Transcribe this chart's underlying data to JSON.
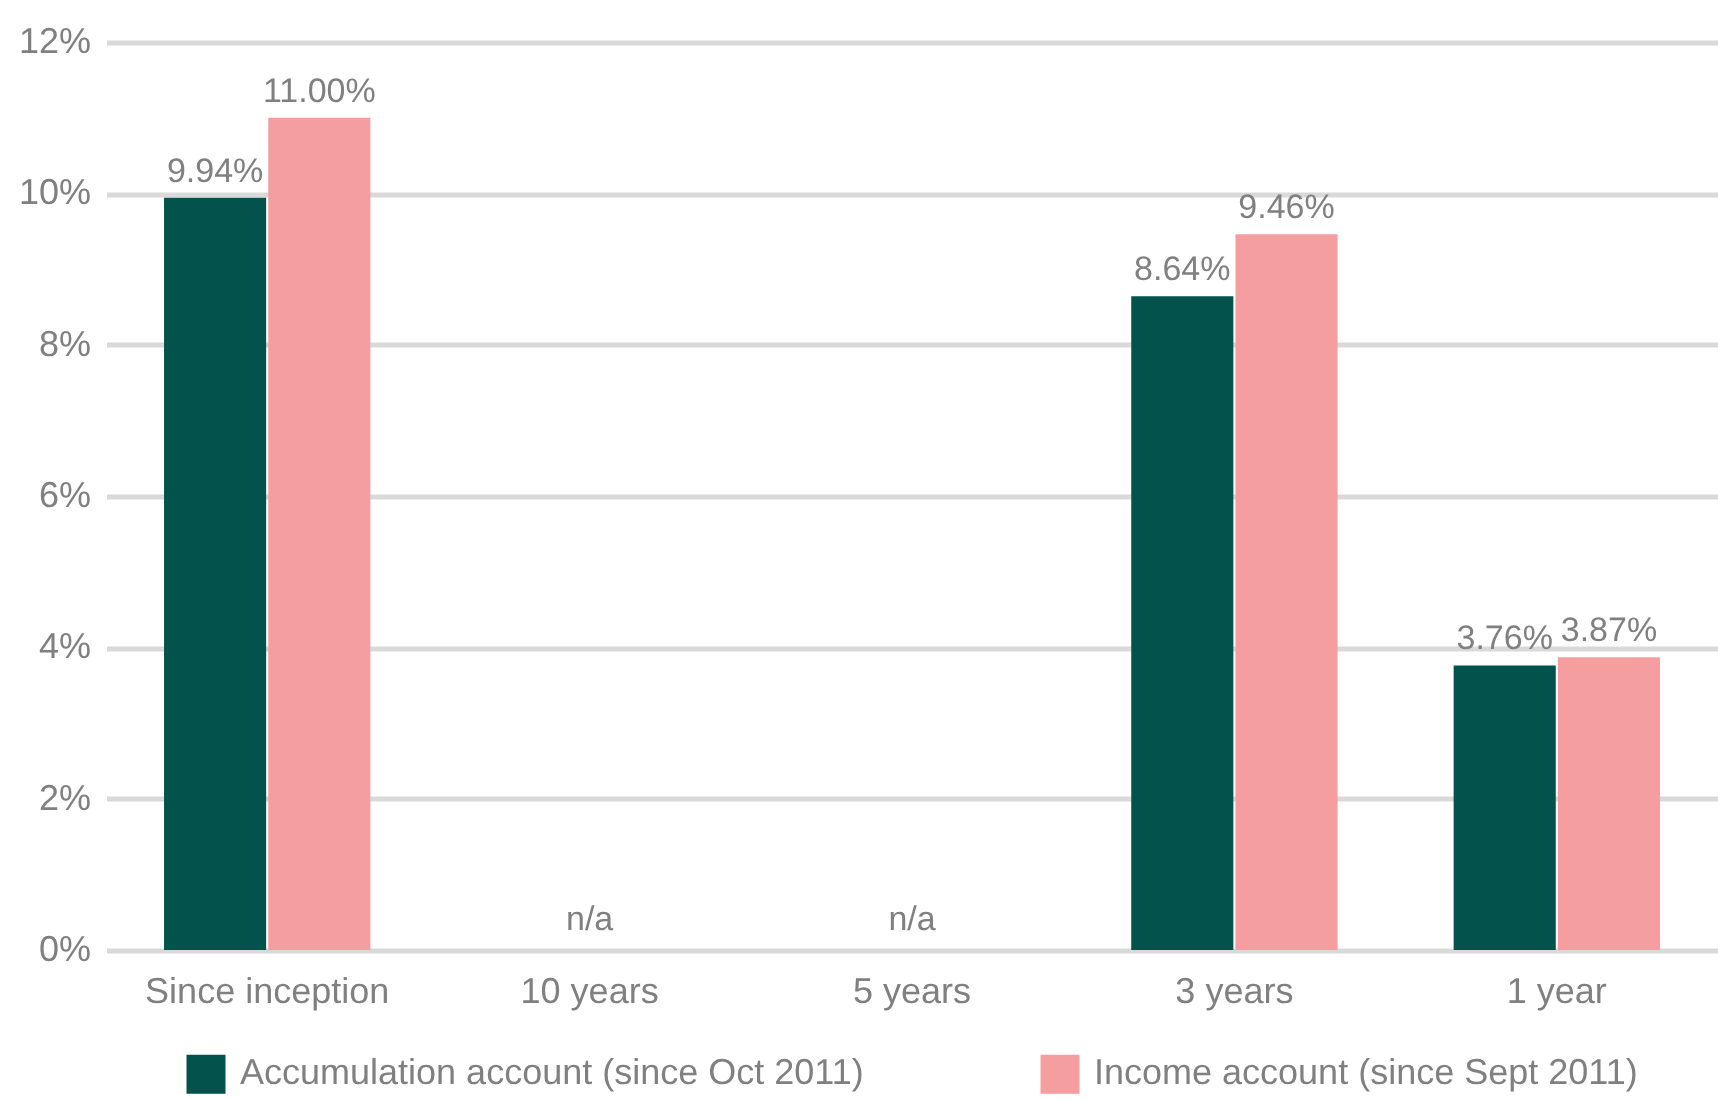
{
  "chart_data": {
    "type": "bar",
    "categories": [
      "Since inception",
      "10 years",
      "5 years",
      "3 years",
      "1 year"
    ],
    "series": [
      {
        "name": "Accumulation account (since Oct 2011)",
        "color": "#03524b",
        "values": [
          9.94,
          null,
          null,
          8.64,
          3.76
        ],
        "value_labels": [
          "9.94%",
          null,
          null,
          "8.64%",
          "3.76%"
        ]
      },
      {
        "name": "Income account (since Sept 2011)",
        "color": "#f59ea0",
        "values": [
          11.0,
          null,
          null,
          9.46,
          3.87
        ],
        "value_labels": [
          "11.00%",
          null,
          null,
          "9.46%",
          "3.87%"
        ]
      }
    ],
    "ylim": [
      0,
      12
    ],
    "yticks": [
      {
        "value": 0,
        "label": "0%"
      },
      {
        "value": 2,
        "label": "2%"
      },
      {
        "value": 4,
        "label": "4%"
      },
      {
        "value": 6,
        "label": "6%"
      },
      {
        "value": 8,
        "label": "8%"
      },
      {
        "value": 10,
        "label": "10%"
      },
      {
        "value": 12,
        "label": "12%"
      }
    ],
    "annotations": [
      "n/a",
      "n/a"
    ],
    "grid": "y",
    "legend": "bottom"
  }
}
